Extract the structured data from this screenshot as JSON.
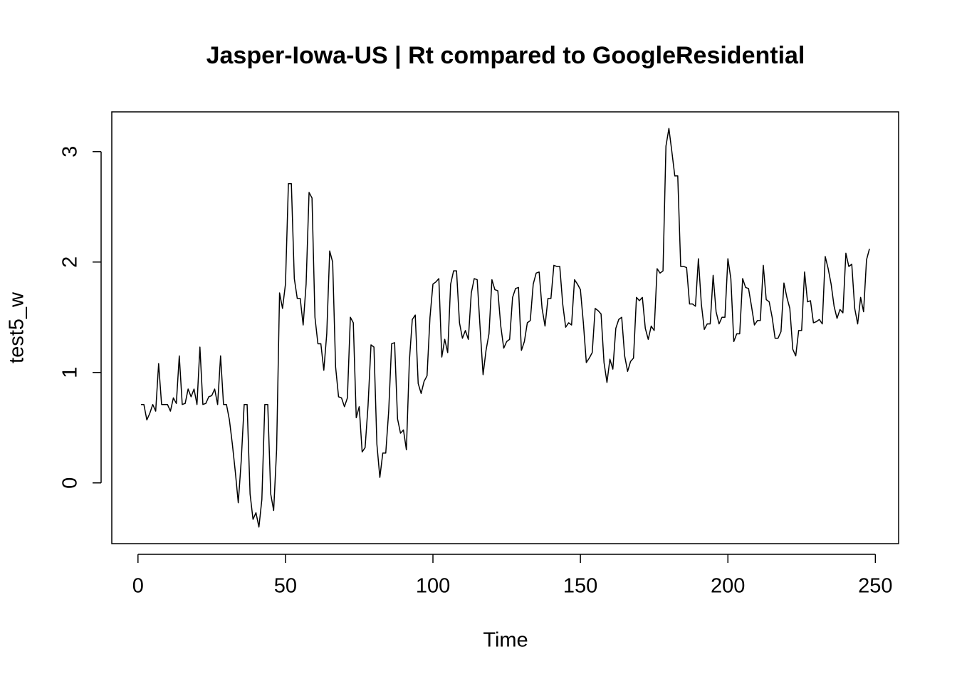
{
  "chart_data": {
    "type": "line",
    "title": "Jasper-Iowa-US | Rt compared to GoogleResidential",
    "x_label": "Time",
    "y_label": "test5_w",
    "color": "#000000",
    "xlim": [
      -8.88,
      257.88
    ],
    "ylim": [
      -0.55,
      3.36
    ],
    "xticks": [
      0,
      50,
      100,
      150,
      200,
      250
    ],
    "yticks": [
      0,
      1,
      2,
      3
    ],
    "x": [
      1,
      2,
      3,
      4,
      5,
      6,
      7,
      8,
      9,
      10,
      11,
      12,
      13,
      14,
      15,
      16,
      17,
      18,
      19,
      20,
      21,
      22,
      23,
      24,
      25,
      26,
      27,
      28,
      29,
      30,
      31,
      32,
      33,
      34,
      35,
      36,
      37,
      38,
      39,
      40,
      41,
      42,
      43,
      44,
      45,
      46,
      47,
      48,
      49,
      50,
      51,
      52,
      53,
      54,
      55,
      56,
      57,
      58,
      59,
      60,
      61,
      62,
      63,
      64,
      65,
      66,
      67,
      68,
      69,
      70,
      71,
      72,
      73,
      74,
      75,
      76,
      77,
      78,
      79,
      80,
      81,
      82,
      83,
      84,
      85,
      86,
      87,
      88,
      89,
      90,
      91,
      92,
      93,
      94,
      95,
      96,
      97,
      98,
      99,
      100,
      101,
      102,
      103,
      104,
      105,
      106,
      107,
      108,
      109,
      110,
      111,
      112,
      113,
      114,
      115,
      116,
      117,
      118,
      119,
      120,
      121,
      122,
      123,
      124,
      125,
      126,
      127,
      128,
      129,
      130,
      131,
      132,
      133,
      134,
      135,
      136,
      137,
      138,
      139,
      140,
      141,
      142,
      143,
      144,
      145,
      146,
      147,
      148,
      149,
      150,
      151,
      152,
      153,
      154,
      155,
      156,
      157,
      158,
      159,
      160,
      161,
      162,
      163,
      164,
      165,
      166,
      167,
      168,
      169,
      170,
      171,
      172,
      173,
      174,
      175,
      176,
      177,
      178,
      179,
      180,
      181,
      182,
      183,
      184,
      185,
      186,
      187,
      188,
      189,
      190,
      191,
      192,
      193,
      194,
      195,
      196,
      197,
      198,
      199,
      200,
      201,
      202,
      203,
      204,
      205,
      206,
      207,
      208,
      209,
      210,
      211,
      212,
      213,
      214,
      215,
      216,
      217,
      218,
      219,
      220,
      221,
      222,
      223,
      224,
      225,
      226,
      227,
      228,
      229,
      230,
      231,
      232,
      233,
      234,
      235,
      236,
      237,
      238,
      239,
      240,
      241,
      242,
      243,
      244,
      245,
      246,
      247,
      248
    ],
    "values": [
      0.71,
      0.71,
      0.57,
      0.63,
      0.71,
      0.65,
      1.08,
      0.71,
      0.71,
      0.71,
      0.65,
      0.77,
      0.72,
      1.15,
      0.71,
      0.72,
      0.85,
      0.78,
      0.85,
      0.71,
      1.23,
      0.71,
      0.72,
      0.78,
      0.79,
      0.85,
      0.71,
      1.15,
      0.71,
      0.71,
      0.57,
      0.35,
      0.1,
      -0.18,
      0.2,
      0.71,
      0.71,
      -0.1,
      -0.33,
      -0.27,
      -0.4,
      -0.15,
      0.71,
      0.71,
      -0.1,
      -0.25,
      0.3,
      1.72,
      1.58,
      1.8,
      2.71,
      2.71,
      1.85,
      1.67,
      1.67,
      1.43,
      1.8,
      2.63,
      2.58,
      1.5,
      1.26,
      1.26,
      1.02,
      1.35,
      2.1,
      2.0,
      1.05,
      0.78,
      0.77,
      0.69,
      0.77,
      1.5,
      1.45,
      0.59,
      0.69,
      0.28,
      0.32,
      0.7,
      1.25,
      1.23,
      0.35,
      0.05,
      0.27,
      0.27,
      0.65,
      1.26,
      1.27,
      0.58,
      0.45,
      0.48,
      0.3,
      1.1,
      1.48,
      1.52,
      0.9,
      0.81,
      0.92,
      0.97,
      1.5,
      1.8,
      1.82,
      1.85,
      1.14,
      1.3,
      1.18,
      1.8,
      1.92,
      1.92,
      1.45,
      1.31,
      1.38,
      1.3,
      1.72,
      1.85,
      1.84,
      1.4,
      0.98,
      1.2,
      1.35,
      1.84,
      1.75,
      1.74,
      1.42,
      1.22,
      1.28,
      1.3,
      1.68,
      1.76,
      1.77,
      1.2,
      1.28,
      1.45,
      1.47,
      1.8,
      1.9,
      1.91,
      1.58,
      1.42,
      1.67,
      1.67,
      1.97,
      1.96,
      1.96,
      1.62,
      1.41,
      1.45,
      1.43,
      1.84,
      1.8,
      1.75,
      1.45,
      1.09,
      1.13,
      1.18,
      1.58,
      1.56,
      1.53,
      1.09,
      0.91,
      1.12,
      1.03,
      1.4,
      1.48,
      1.5,
      1.15,
      1.01,
      1.1,
      1.13,
      1.68,
      1.65,
      1.68,
      1.4,
      1.3,
      1.42,
      1.38,
      1.94,
      1.9,
      1.92,
      3.05,
      3.21,
      3.0,
      2.78,
      2.78,
      1.96,
      1.96,
      1.95,
      1.62,
      1.62,
      1.6,
      2.03,
      1.62,
      1.39,
      1.44,
      1.44,
      1.88,
      1.55,
      1.44,
      1.5,
      1.5,
      2.03,
      1.85,
      1.28,
      1.35,
      1.35,
      1.85,
      1.77,
      1.76,
      1.6,
      1.43,
      1.47,
      1.47,
      1.97,
      1.66,
      1.64,
      1.5,
      1.31,
      1.31,
      1.37,
      1.81,
      1.68,
      1.58,
      1.21,
      1.15,
      1.38,
      1.38,
      1.91,
      1.64,
      1.65,
      1.45,
      1.46,
      1.48,
      1.44,
      2.05,
      1.94,
      1.8,
      1.6,
      1.49,
      1.57,
      1.54,
      2.08,
      1.96,
      1.98,
      1.58,
      1.44,
      1.68,
      1.55,
      2.02,
      2.12
    ]
  }
}
